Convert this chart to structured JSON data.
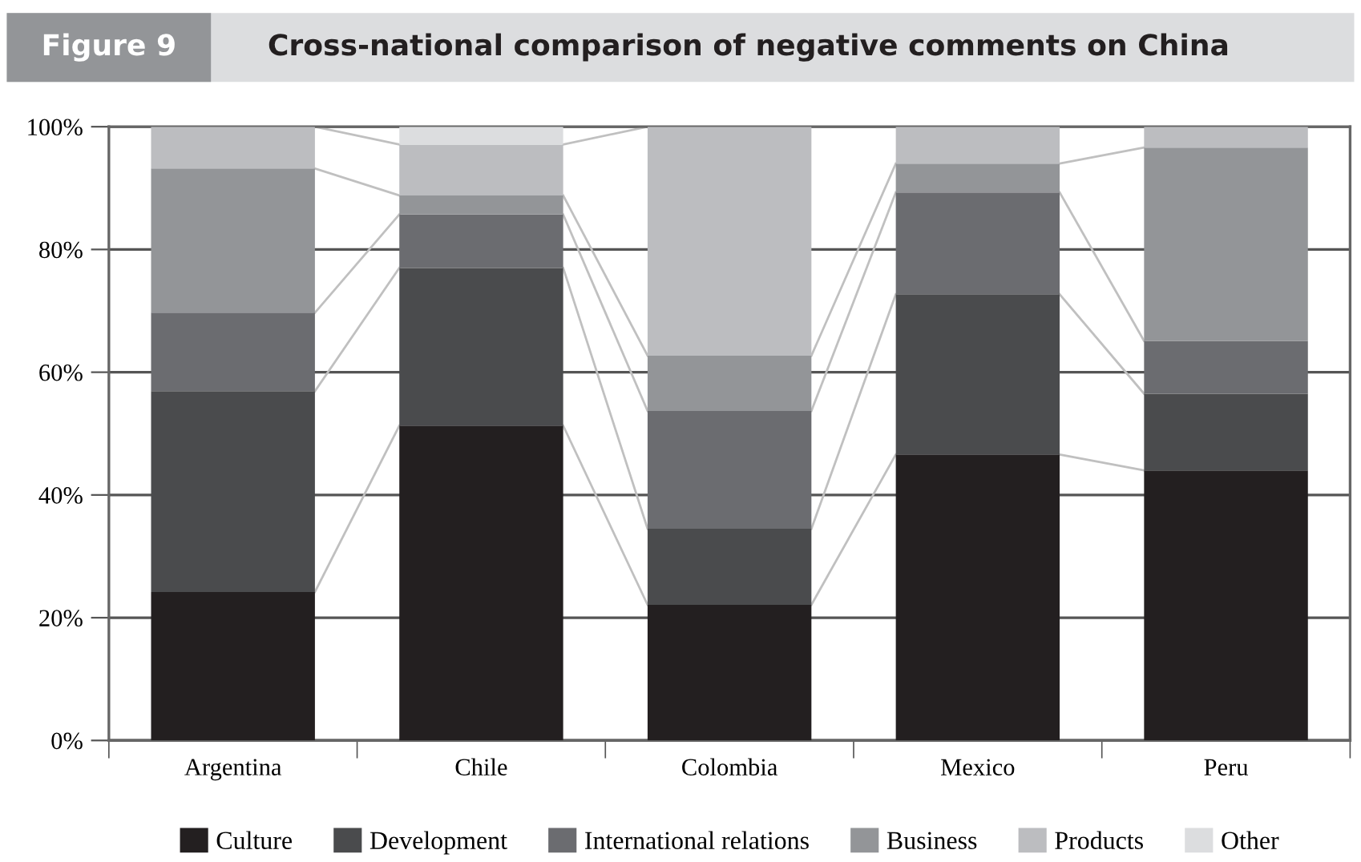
{
  "chart_data": {
    "type": "bar",
    "stacked": true,
    "title": "Cross-national comparison of negative comments on China",
    "annotations": [
      "Figure 9"
    ],
    "categories": [
      "Argentina",
      "Chile",
      "Colombia",
      "Mexico",
      "Peru"
    ],
    "series": [
      {
        "name": "Culture",
        "color": "#231f20",
        "values": [
          24.2,
          51.3,
          22.1,
          46.6,
          44.0
        ]
      },
      {
        "name": "Development",
        "color": "#4a4b4d",
        "values": [
          32.7,
          25.7,
          12.4,
          26.1,
          12.5
        ]
      },
      {
        "name": "International relations",
        "color": "#6b6c70",
        "values": [
          12.8,
          8.7,
          19.2,
          16.6,
          8.6
        ]
      },
      {
        "name": "Business",
        "color": "#939598",
        "values": [
          23.5,
          3.1,
          9.0,
          4.7,
          31.5
        ]
      },
      {
        "name": "Products",
        "color": "#bcbdc0",
        "values": [
          6.8,
          8.3,
          37.3,
          6.0,
          3.4
        ]
      },
      {
        "name": "Other",
        "color": "#dcdddf",
        "values": [
          0,
          2.9,
          0,
          0,
          0
        ]
      }
    ],
    "ylim": [
      0,
      100
    ],
    "yticks": [
      {
        "value": 0,
        "label": "0%"
      },
      {
        "value": 20,
        "label": "20%"
      },
      {
        "value": 40,
        "label": "40%"
      },
      {
        "value": 60,
        "label": "60%"
      },
      {
        "value": 80,
        "label": "80%"
      },
      {
        "value": 100,
        "label": "100%"
      }
    ],
    "grid": "y",
    "legend": "bottom"
  }
}
